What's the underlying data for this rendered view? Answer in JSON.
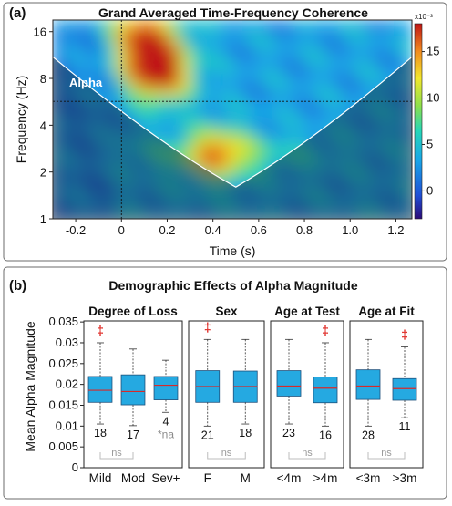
{
  "panel_a": {
    "letter": "(a)",
    "title": "Grand Averaged Time-Frequency Coherence",
    "colorbar_exponent": "x10⁻³",
    "region_label": "Alpha"
  },
  "panel_b": {
    "letter": "(b)",
    "title": "Demographic Effects of Alpha Magnitude",
    "na_label": "*na",
    "ns_label": "ns",
    "dagger": "‡"
  },
  "colors": {
    "box_fill": "#25a9e1",
    "median": "#d62a2a",
    "dagger": "#e0302b",
    "cone_edge": "#ffffff"
  },
  "chart_data": [
    {
      "type": "heatmap",
      "title": "Grand Averaged Time-Frequency Coherence",
      "xlabel": "Time (s)",
      "ylabel": "Frequency (Hz)",
      "xlim": [
        -0.3,
        1.27
      ],
      "ylim": [
        1,
        19
      ],
      "y_scale": "log2",
      "x_ticks": [
        "-0.2",
        "0",
        "0.2",
        "0.4",
        "0.6",
        "0.8",
        "1.0",
        "1.2"
      ],
      "y_ticks": [
        "1",
        "2",
        "4",
        "8",
        "16"
      ],
      "colorbar": {
        "ticks": [
          "0",
          "5",
          "10",
          "15"
        ],
        "range": [
          -3,
          18
        ],
        "scale_label": "x10⁻³",
        "colormap": "jet"
      },
      "alpha_band_hz": [
        5.7,
        11
      ],
      "cone_of_influence_vertex": {
        "time_s": 0.5,
        "freq_hz": 1.6
      },
      "stimulus_onset_s": 0,
      "hotspots": [
        {
          "time_s": 0.17,
          "freq_hz": 8.5,
          "value": 17
        },
        {
          "time_s": 0.13,
          "freq_hz": 14,
          "value": 11
        },
        {
          "time_s": 0.42,
          "freq_hz": 2.6,
          "value": 10
        }
      ]
    },
    {
      "type": "box",
      "title": "Demographic Effects of Alpha Magnitude",
      "ylabel": "Mean Alpha Magnitude",
      "ylim": [
        0,
        0.037
      ],
      "y_ticks": [
        "0",
        "0.005",
        "0.01",
        "0.015",
        "0.02",
        "0.025",
        "0.03",
        "0.035"
      ],
      "groups": [
        {
          "name": "Degree of Loss",
          "boxes": [
            {
              "label": "Mild",
              "n": "18",
              "min": 0.0105,
              "q1": 0.0157,
              "median": 0.0186,
              "q3": 0.0219,
              "max": 0.03,
              "outlier_marker": true
            },
            {
              "label": "Mod",
              "n": "17",
              "min": 0.0101,
              "q1": 0.0151,
              "median": 0.0183,
              "q3": 0.0223,
              "max": 0.0285,
              "outlier_marker": false
            },
            {
              "label": "Sev+",
              "n": "4",
              "min": 0.0133,
              "q1": 0.0163,
              "median": 0.0198,
              "q3": 0.0219,
              "max": 0.0258,
              "outlier_marker": false,
              "note": "*na"
            }
          ]
        },
        {
          "name": "Sex",
          "boxes": [
            {
              "label": "F",
              "n": "21",
              "min": 0.01,
              "q1": 0.0157,
              "median": 0.0195,
              "q3": 0.0233,
              "max": 0.0308,
              "outlier_marker": true
            },
            {
              "label": "M",
              "n": "18",
              "min": 0.0105,
              "q1": 0.0157,
              "median": 0.0195,
              "q3": 0.0232,
              "max": 0.0308,
              "outlier_marker": false
            }
          ]
        },
        {
          "name": "Age at Test",
          "boxes": [
            {
              "label": "<4m",
              "n": "23",
              "min": 0.0105,
              "q1": 0.0172,
              "median": 0.0196,
              "q3": 0.0233,
              "max": 0.0308,
              "outlier_marker": false
            },
            {
              "label": ">4m",
              "n": "16",
              "min": 0.01,
              "q1": 0.0156,
              "median": 0.0191,
              "q3": 0.0218,
              "max": 0.03,
              "outlier_marker": true
            }
          ]
        },
        {
          "name": "Age at Fit",
          "boxes": [
            {
              "label": "<3m",
              "n": "28",
              "min": 0.01,
              "q1": 0.0164,
              "median": 0.0196,
              "q3": 0.0235,
              "max": 0.0308,
              "outlier_marker": false
            },
            {
              "label": ">3m",
              "n": "11",
              "min": 0.012,
              "q1": 0.0162,
              "median": 0.019,
              "q3": 0.0214,
              "max": 0.029,
              "outlier_marker": true
            }
          ]
        }
      ],
      "group_comparison": "ns"
    }
  ]
}
